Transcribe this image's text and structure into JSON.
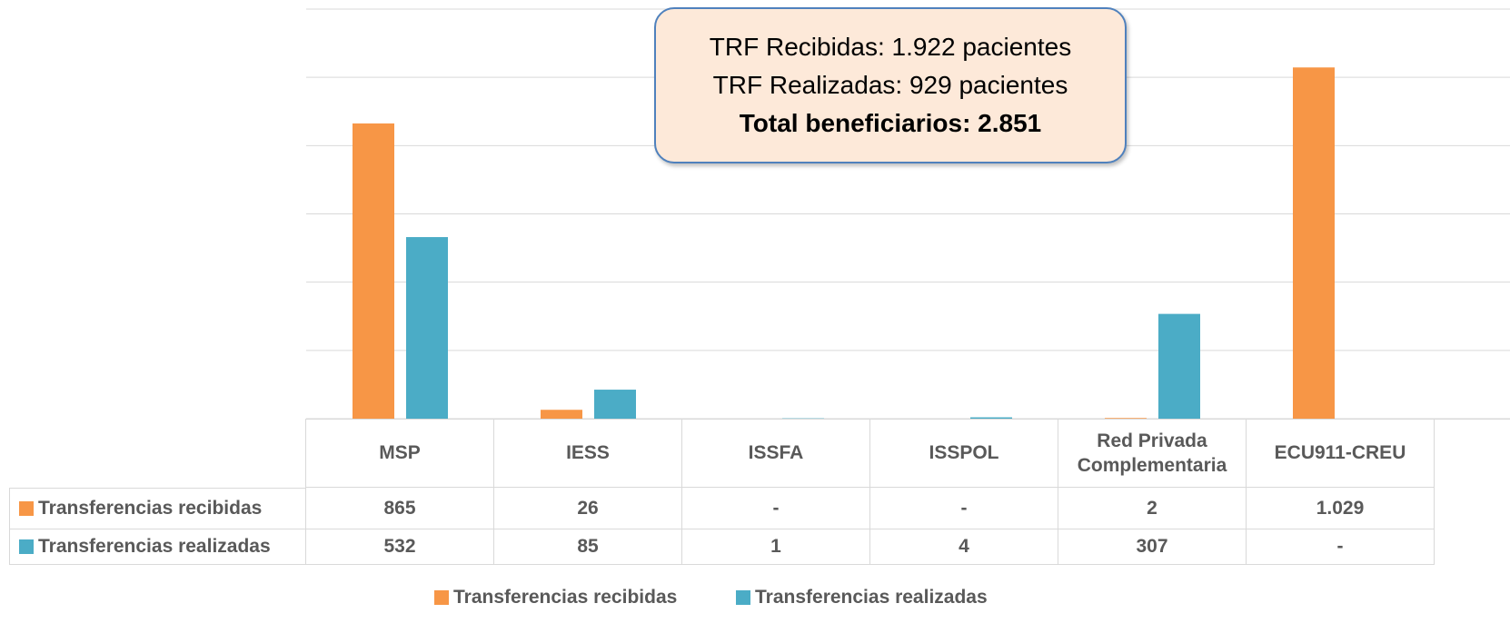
{
  "chart_data": {
    "type": "bar",
    "annotation": [
      "TRF Recibidas: 1.922 pacientes",
      "TRF Realizadas: 929 pacientes",
      "Total beneficiarios: 2.851"
    ],
    "categories": [
      "MSP",
      "IESS",
      "ISSFA",
      "ISSPOL",
      "Red Privada Complementaria",
      "ECU911-CREU"
    ],
    "series": [
      {
        "name": "Transferencias recibidas",
        "color": "#f79646",
        "values": [
          865,
          26,
          null,
          null,
          2,
          1029
        ],
        "value_labels": [
          "865",
          "26",
          "-",
          "-",
          "2",
          "1.029"
        ]
      },
      {
        "name": "Transferencias realizadas",
        "color": "#4bacc6",
        "values": [
          532,
          85,
          1,
          4,
          307,
          null
        ],
        "value_labels": [
          "532",
          "85",
          "1",
          "4",
          "307",
          "-"
        ]
      }
    ],
    "ylim": [
      0,
      1200
    ],
    "yticks": [
      0,
      200,
      400,
      600,
      800,
      1000,
      1200
    ],
    "grid": true,
    "legend": "bottom"
  }
}
